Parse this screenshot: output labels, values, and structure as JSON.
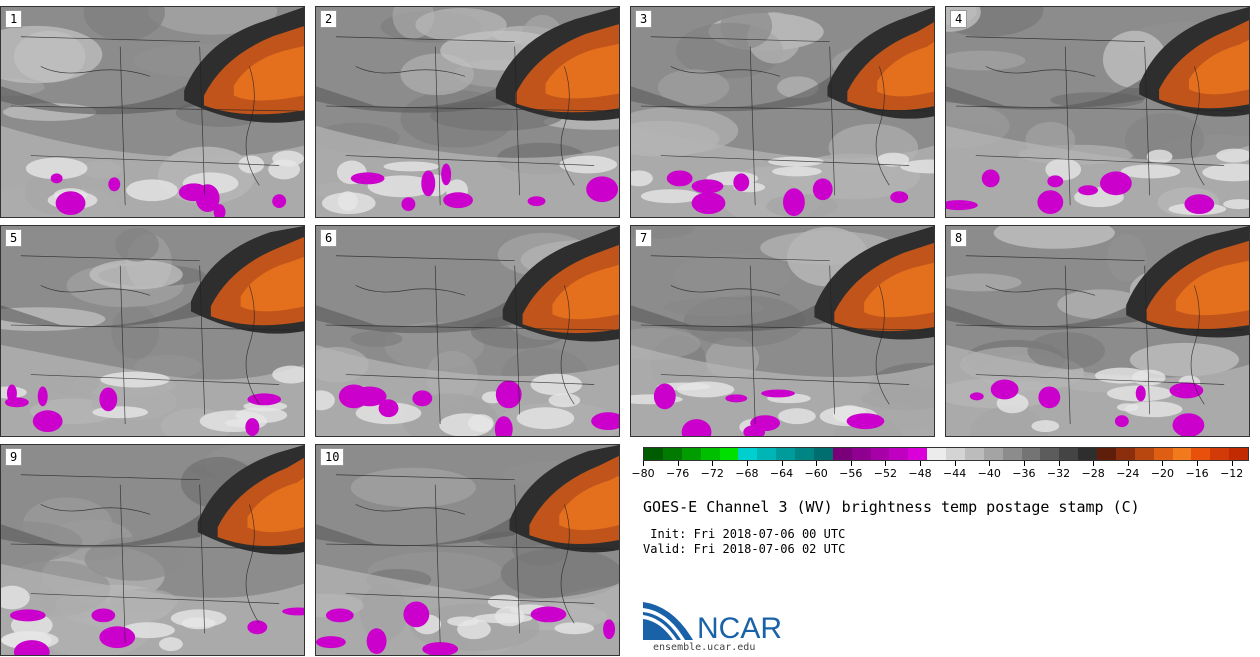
{
  "panels": [
    "1",
    "2",
    "3",
    "4",
    "5",
    "6",
    "7",
    "8",
    "9",
    "10"
  ],
  "colorbar": {
    "colors": [
      "#005c00",
      "#007a00",
      "#009c00",
      "#00bf00",
      "#00e000",
      "#00cfcf",
      "#00b5b5",
      "#009c9c",
      "#008585",
      "#006e6e",
      "#7a007a",
      "#900090",
      "#a800a8",
      "#c000c0",
      "#da00da",
      "#ececec",
      "#d4d4d4",
      "#bcbcbc",
      "#a4a4a4",
      "#8c8c8c",
      "#747474",
      "#5c5c5c",
      "#444444",
      "#2e2e2e",
      "#5e1e0a",
      "#8a2e0e",
      "#b8460f",
      "#de5e14",
      "#f07a1c",
      "#e8500c",
      "#d23a08",
      "#c22a02"
    ],
    "tick_values": [
      -80,
      -76,
      -72,
      -68,
      -64,
      -60,
      -56,
      -52,
      -48,
      -44,
      -40,
      -36,
      -32,
      -28,
      -24,
      -20,
      -16,
      -12
    ],
    "tick_labels": [
      "−80",
      "−76",
      "−72",
      "−68",
      "−64",
      "−60",
      "−56",
      "−52",
      "−48",
      "−44",
      "−40",
      "−36",
      "−32",
      "−28",
      "−24",
      "−20",
      "−16",
      "−12"
    ],
    "min": -80,
    "max": -10
  },
  "title": "GOES-E Channel 3 (WV) brightness temp postage stamp (C)",
  "init": " Init: Fri 2018-07-06 00 UTC",
  "valid": "Valid: Fri 2018-07-06 02 UTC",
  "logo": {
    "text": "NCAR",
    "url": "ensemble.ucar.edu",
    "brand_color": "#1a62a8"
  },
  "colors": {
    "moist_orange": "#d8601a",
    "dry_dark": "#3a3a3a",
    "cold_magenta": "#cc00cc"
  }
}
